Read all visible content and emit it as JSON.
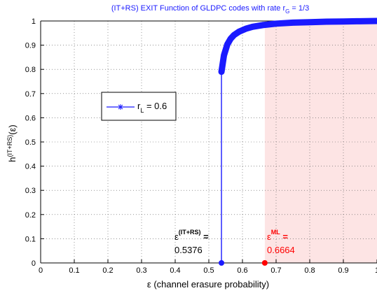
{
  "chart_data": {
    "type": "line",
    "title": {
      "main": "(IT+RS) EXIT Function of GLDPC codes with rate r",
      "sub": "G",
      "tail": " = 1/3"
    },
    "xlabel": "ε (channel erasure probability)",
    "ylabel": {
      "base": "h",
      "sup": "(IT+RS)",
      "tail": "(ε)"
    },
    "xlim": [
      0,
      1
    ],
    "ylim": [
      0,
      1
    ],
    "xticks": [
      "0",
      "0.1",
      "0.2",
      "0.3",
      "0.4",
      "0.5",
      "0.6",
      "0.7",
      "0.8",
      "0.9",
      "1"
    ],
    "yticks": [
      "0",
      "0.1",
      "0.2",
      "0.3",
      "0.4",
      "0.5",
      "0.6",
      "0.7",
      "0.8",
      "0.9",
      "1"
    ],
    "grid": true,
    "legend": {
      "position": "left",
      "label_base": "r",
      "label_sub": "L",
      "label_tail": " = 0.6"
    },
    "series": [
      {
        "name": "rL = 0.6",
        "color": "#1a1aff",
        "marker": "asterisk",
        "threshold_x": 0.5376,
        "jump_to_y": 0.79,
        "x": [
          0.5376,
          0.545,
          0.555,
          0.565,
          0.575,
          0.59,
          0.61,
          0.63,
          0.66,
          0.7,
          0.75,
          0.8,
          0.85,
          0.9,
          0.95,
          1.0
        ],
        "y": [
          0.79,
          0.858,
          0.903,
          0.927,
          0.942,
          0.956,
          0.968,
          0.976,
          0.983,
          0.989,
          0.993,
          0.995,
          0.997,
          0.998,
          0.999,
          1.0
        ]
      }
    ],
    "shaded_region": {
      "x_from": 0.6664,
      "x_to": 1.0,
      "color": "#fde4e4"
    },
    "annotations": [
      {
        "symbol": "ε",
        "sup": "(IT+RS)",
        "suffix": " =",
        "value": "0.5376",
        "x": 0.5376,
        "color": "#000000"
      },
      {
        "symbol": "ε",
        "sup": "ML",
        "suffix": " =",
        "value": "0.6664",
        "x": 0.6664,
        "color": "#ff0000"
      }
    ]
  }
}
